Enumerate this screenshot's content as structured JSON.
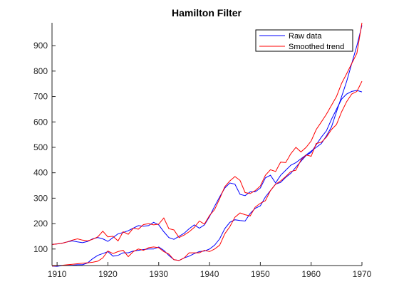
{
  "chart_data": {
    "type": "line",
    "title": "Hamilton  Filter",
    "xlabel": "",
    "ylabel": "",
    "xlim": [
      1909,
      1970
    ],
    "ylim": [
      35,
      990
    ],
    "xticks": [
      1910,
      1920,
      1930,
      1940,
      1950,
      1960,
      1970
    ],
    "yticks": [
      100,
      200,
      300,
      400,
      500,
      600,
      700,
      800,
      900
    ],
    "grid": false,
    "legend_position": "top-right",
    "series": [
      {
        "name": "Raw data",
        "color": "#0000ff",
        "x": [
          1909,
          1910,
          1911,
          1912,
          1913,
          1914,
          1915,
          1916,
          1917,
          1918,
          1919,
          1920,
          1921,
          1922,
          1923,
          1924,
          1925,
          1926,
          1927,
          1928,
          1929,
          1930,
          1931,
          1932,
          1933,
          1934,
          1935,
          1936,
          1937,
          1938,
          1939,
          1940,
          1941,
          1942,
          1943,
          1944,
          1945,
          1946,
          1947,
          1948,
          1949,
          1950,
          1951,
          1952,
          1953,
          1954,
          1955,
          1956,
          1957,
          1958,
          1959,
          1960,
          1961,
          1962,
          1963,
          1964,
          1965,
          1966,
          1967,
          1968,
          1969,
          1970
        ],
        "values": [
          118,
          120,
          123,
          128,
          132,
          128,
          125,
          130,
          140,
          145,
          140,
          130,
          145,
          160,
          165,
          172,
          182,
          192,
          190,
          192,
          205,
          195,
          168,
          145,
          138,
          150,
          162,
          180,
          195,
          182,
          195,
          228,
          268,
          305,
          340,
          360,
          355,
          315,
          310,
          325,
          325,
          340,
          380,
          390,
          360,
          390,
          410,
          430,
          440,
          455,
          470,
          485,
          500,
          515,
          545,
          580,
          640,
          700,
          760,
          830,
          900,
          980
        ]
      },
      {
        "name": "Smoothed trend",
        "color": "#ff0000",
        "x": [
          1909,
          1910,
          1911,
          1912,
          1913,
          1914,
          1915,
          1916,
          1917,
          1918,
          1919,
          1920,
          1921,
          1922,
          1923,
          1924,
          1925,
          1926,
          1927,
          1928,
          1929,
          1930,
          1931,
          1932,
          1933,
          1934,
          1935,
          1936,
          1937,
          1938,
          1939,
          1940,
          1941,
          1942,
          1943,
          1944,
          1945,
          1946,
          1947,
          1948,
          1949,
          1950,
          1951,
          1952,
          1953,
          1954,
          1955,
          1956,
          1957,
          1958,
          1959,
          1960,
          1961,
          1962,
          1963,
          1964,
          1965,
          1966,
          1967,
          1968,
          1969,
          1970
        ],
        "values": [
          118,
          120,
          123,
          128,
          135,
          140,
          135,
          132,
          138,
          148,
          170,
          148,
          150,
          132,
          168,
          158,
          182,
          178,
          196,
          200,
          195,
          198,
          222,
          180,
          175,
          145,
          155,
          168,
          185,
          210,
          198,
          232,
          255,
          298,
          345,
          368,
          385,
          370,
          322,
          318,
          330,
          348,
          390,
          412,
          405,
          442,
          440,
          475,
          500,
          482,
          500,
          525,
          570,
          600,
          630,
          665,
          700,
          752,
          790,
          830,
          870,
          990
        ]
      },
      {
        "name": "",
        "color": "#0000ff",
        "x": [
          1909,
          1910,
          1911,
          1912,
          1913,
          1914,
          1915,
          1916,
          1917,
          1918,
          1919,
          1920,
          1921,
          1922,
          1923,
          1924,
          1925,
          1926,
          1927,
          1928,
          1929,
          1930,
          1931,
          1932,
          1933,
          1934,
          1935,
          1936,
          1937,
          1938,
          1939,
          1940,
          1941,
          1942,
          1943,
          1944,
          1945,
          1946,
          1947,
          1948,
          1949,
          1950,
          1951,
          1952,
          1953,
          1954,
          1955,
          1956,
          1957,
          1958,
          1959,
          1960,
          1961,
          1962,
          1963,
          1964,
          1965,
          1966,
          1967,
          1968,
          1969,
          1970
        ],
        "values": [
          33,
          32,
          35,
          36,
          36,
          38,
          38,
          45,
          62,
          75,
          82,
          90,
          72,
          75,
          85,
          85,
          92,
          95,
          98,
          100,
          100,
          108,
          95,
          75,
          58,
          55,
          65,
          72,
          82,
          90,
          92,
          100,
          115,
          140,
          180,
          205,
          215,
          212,
          210,
          240,
          260,
          270,
          305,
          330,
          355,
          362,
          382,
          398,
          422,
          445,
          468,
          480,
          510,
          540,
          565,
          610,
          650,
          690,
          710,
          720,
          724,
          718
        ]
      },
      {
        "name": "",
        "color": "#ff0000",
        "x": [
          1909,
          1910,
          1911,
          1912,
          1913,
          1914,
          1915,
          1916,
          1917,
          1918,
          1919,
          1920,
          1921,
          1922,
          1923,
          1924,
          1925,
          1926,
          1927,
          1928,
          1929,
          1930,
          1931,
          1932,
          1933,
          1934,
          1935,
          1936,
          1937,
          1938,
          1939,
          1940,
          1941,
          1942,
          1943,
          1944,
          1945,
          1946,
          1947,
          1948,
          1949,
          1950,
          1951,
          1952,
          1953,
          1954,
          1955,
          1956,
          1957,
          1958,
          1959,
          1960,
          1961,
          1962,
          1963,
          1964,
          1965,
          1966,
          1967,
          1968,
          1969,
          1970
        ],
        "values": [
          33,
          34,
          36,
          38,
          40,
          42,
          44,
          46,
          48,
          52,
          65,
          92,
          82,
          90,
          95,
          70,
          90,
          100,
          95,
          105,
          108,
          105,
          90,
          80,
          58,
          55,
          65,
          85,
          85,
          85,
          95,
          90,
          100,
          115,
          160,
          188,
          225,
          242,
          235,
          230,
          265,
          280,
          290,
          330,
          355,
          368,
          385,
          405,
          410,
          450,
          470,
          465,
          515,
          520,
          540,
          570,
          590,
          640,
          680,
          710,
          720,
          760
        ]
      }
    ]
  }
}
